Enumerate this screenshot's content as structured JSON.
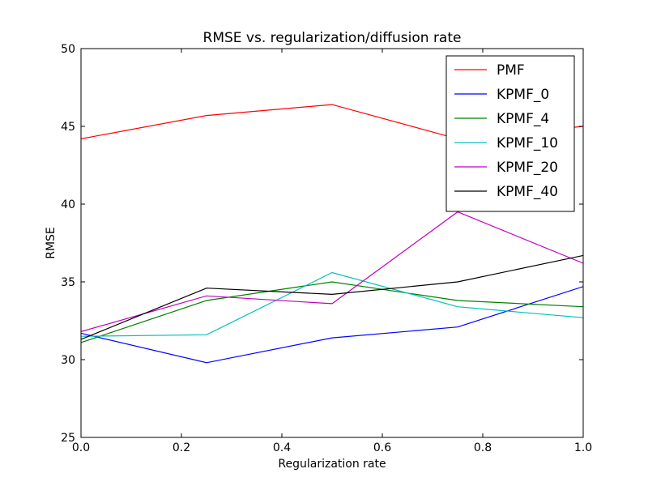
{
  "chart_data": {
    "type": "line",
    "title": "RMSE vs. regularization/diffusion rate",
    "xlabel": "Regularization rate",
    "ylabel": "RMSE",
    "xlim": [
      0.0,
      1.0
    ],
    "ylim": [
      25,
      50
    ],
    "x_ticks": [
      "0.0",
      "0.2",
      "0.4",
      "0.6",
      "0.8",
      "1.0"
    ],
    "y_ticks": [
      "25",
      "30",
      "35",
      "40",
      "45",
      "50"
    ],
    "grid": false,
    "legend_position": "top-right",
    "x": [
      0.0,
      0.25,
      0.5,
      0.75,
      1.0
    ],
    "series": [
      {
        "name": "PMF",
        "color": "#ff0000",
        "values": [
          44.2,
          45.7,
          46.4,
          44.2,
          45.0
        ]
      },
      {
        "name": "KPMF_0",
        "color": "#0000ff",
        "values": [
          31.7,
          29.8,
          31.4,
          32.1,
          34.7
        ]
      },
      {
        "name": "KPMF_4",
        "color": "#008000",
        "values": [
          31.1,
          33.8,
          35.0,
          33.8,
          33.4
        ]
      },
      {
        "name": "KPMF_10",
        "color": "#00bfbf",
        "values": [
          31.5,
          31.6,
          35.6,
          33.4,
          32.7
        ]
      },
      {
        "name": "KPMF_20",
        "color": "#bf00bf",
        "values": [
          31.8,
          34.1,
          33.6,
          39.5,
          36.2
        ]
      },
      {
        "name": "KPMF_40",
        "color": "#000000",
        "values": [
          31.3,
          34.6,
          34.2,
          35.0,
          36.7
        ]
      }
    ]
  }
}
